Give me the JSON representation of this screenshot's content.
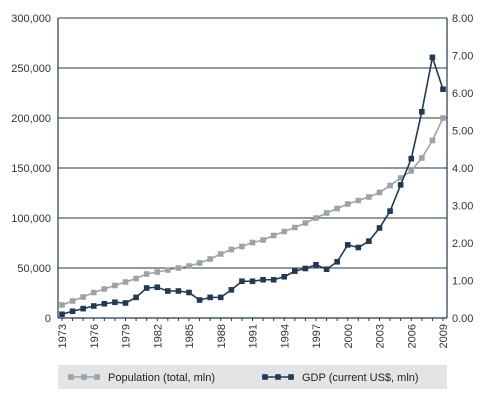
{
  "chart_data": {
    "type": "line",
    "x": [
      1973,
      1974,
      1975,
      1976,
      1977,
      1978,
      1979,
      1980,
      1981,
      1982,
      1983,
      1984,
      1985,
      1986,
      1987,
      1988,
      1989,
      1990,
      1991,
      1992,
      1993,
      1994,
      1995,
      1996,
      1997,
      1998,
      1999,
      2000,
      2001,
      2002,
      2003,
      2004,
      2005,
      2006,
      2007,
      2008,
      2009
    ],
    "x_tick_labels": [
      "1973",
      "1976",
      "1979",
      "1982",
      "1985",
      "1988",
      "1991",
      "1994",
      "1997",
      "2000",
      "2003",
      "2006",
      "2009"
    ],
    "series": [
      {
        "name": "Population (total, mln)",
        "axis": "left",
        "color": "#a0a3a6",
        "values": [
          13000,
          17000,
          21000,
          25500,
          29000,
          32500,
          36000,
          39500,
          44000,
          46000,
          48000,
          50000,
          52000,
          55000,
          59000,
          64000,
          68500,
          71500,
          75500,
          78000,
          82500,
          86500,
          90500,
          95000,
          100000,
          105000,
          109500,
          114000,
          117500,
          121000,
          125500,
          132500,
          140000,
          147000,
          160000,
          177500,
          200000
        ]
      },
      {
        "name": "GDP (current US$, mln)",
        "axis": "right",
        "color": "#1f3a52",
        "values": [
          0.1,
          0.18,
          0.25,
          0.32,
          0.38,
          0.42,
          0.4,
          0.55,
          0.8,
          0.82,
          0.72,
          0.72,
          0.68,
          0.48,
          0.55,
          0.55,
          0.75,
          0.98,
          0.98,
          1.02,
          1.02,
          1.1,
          1.25,
          1.32,
          1.42,
          1.3,
          1.5,
          1.95,
          1.88,
          2.05,
          2.4,
          2.85,
          3.55,
          4.25,
          5.5,
          6.95,
          6.1
        ]
      }
    ],
    "y_left": {
      "ylim": [
        0,
        300000
      ],
      "ticks": [
        0,
        50000,
        100000,
        150000,
        200000,
        250000,
        300000
      ],
      "tick_labels": [
        "0",
        "50,000",
        "100,000",
        "150,000",
        "200,000",
        "250,000",
        "300,000"
      ]
    },
    "y_right": {
      "ylim": [
        0,
        8
      ],
      "ticks": [
        0,
        1,
        2,
        3,
        4,
        5,
        6,
        7,
        8
      ],
      "tick_labels": [
        "0.00",
        "1.00",
        "2.00",
        "3.00",
        "4.00",
        "5.00",
        "6.00",
        "7.00",
        "8.00"
      ]
    },
    "grid": "horizontal",
    "legend_placement": "bottom",
    "colors": {
      "legend_background": "#e3e4e6",
      "grid": "#1f3a52"
    }
  }
}
